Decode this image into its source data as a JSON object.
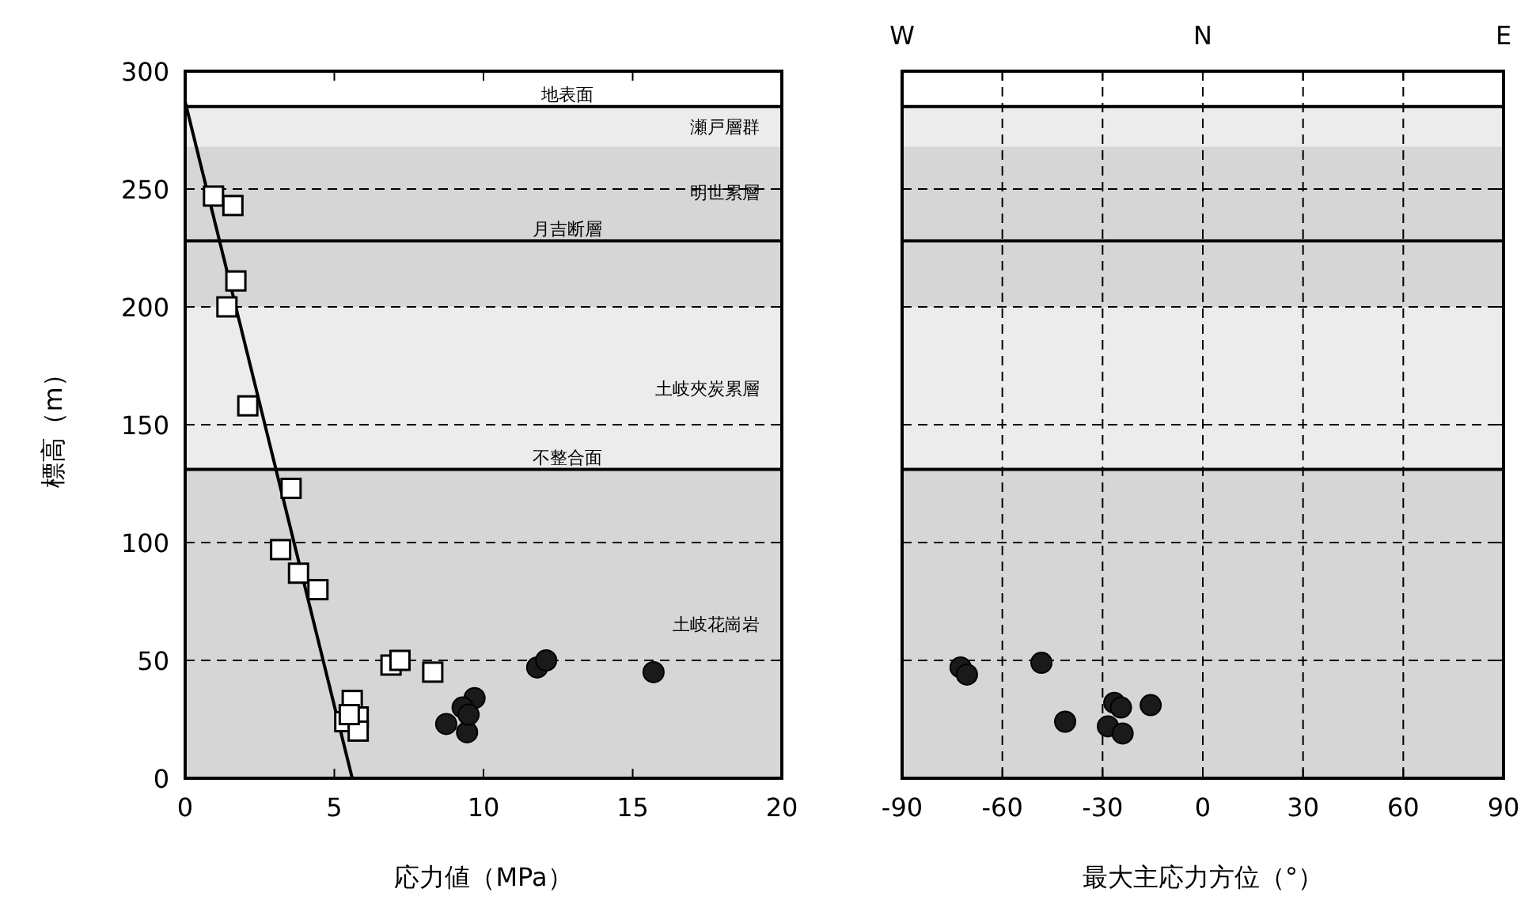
{
  "chart_data": [
    {
      "type": "scatter",
      "xlabel": "応力値（MPa）",
      "ylabel": "標高（m）",
      "xlim": [
        0,
        20
      ],
      "xticks": [
        0,
        5,
        10,
        15,
        20
      ],
      "ylim": [
        0,
        300
      ],
      "yticks": [
        0,
        50,
        100,
        150,
        200,
        250,
        300
      ],
      "grid": "y",
      "bands": [
        {
          "axis": "y",
          "from": 268,
          "to": 285,
          "label": "瀬戸層群",
          "color": "#ececec"
        },
        {
          "axis": "y",
          "from": 229,
          "to": 268,
          "label": "明世累層",
          "color": "#d6d6d6"
        },
        {
          "axis": "y",
          "from": 200,
          "to": 229,
          "color": "#d6d6d6"
        },
        {
          "axis": "y",
          "from": 131,
          "to": 200,
          "label": "土岐夾炭累層",
          "color": "#ececec"
        },
        {
          "axis": "y",
          "from": 0,
          "to": 131,
          "label": "土岐花崗岩",
          "color": "#d6d6d6"
        }
      ],
      "ref_lines": [
        {
          "axis": "y",
          "value": 285,
          "label": "地表面",
          "color": "#000000"
        },
        {
          "axis": "y",
          "value": 228,
          "label": "月吉断層",
          "color": "#000000"
        },
        {
          "axis": "y",
          "value": 131,
          "label": "不整合面",
          "color": "#000000"
        }
      ],
      "series": [
        {
          "type": "line",
          "color": "#000000",
          "x": [
            0,
            5.6
          ],
          "values": [
            287,
            0
          ]
        },
        {
          "color": "#ffffff",
          "marker": "square",
          "x": [
            0.95,
            1.6,
            1.7,
            1.4,
            2.1,
            3.55,
            3.2,
            3.8,
            4.45,
            6.9,
            7.2,
            8.3,
            5.6,
            5.35,
            5.8,
            5.8,
            5.5
          ],
          "values": [
            247,
            243,
            211,
            200,
            158,
            123,
            97,
            87,
            80,
            48,
            50,
            45,
            33,
            24,
            26,
            20,
            27
          ]
        },
        {
          "color": "#1a1a1a",
          "marker": "circle",
          "x": [
            11.8,
            12.1,
            15.7,
            8.75,
            9.7,
            9.3,
            9.45,
            9.5
          ],
          "values": [
            47,
            50,
            45,
            23,
            34,
            30,
            19.5,
            27
          ]
        }
      ]
    },
    {
      "type": "scatter",
      "xlabel": "最大主応力方位（°）",
      "xlim": [
        -90,
        90
      ],
      "xticks": [
        -90,
        -60,
        -30,
        0,
        30,
        60,
        90
      ],
      "annotations": [
        "W",
        "N",
        "E"
      ],
      "ylim": [
        0,
        300
      ],
      "yticks": [
        {
          "value": 0,
          "label": null
        },
        {
          "value": 50,
          "label": null
        },
        {
          "value": 100,
          "label": null
        },
        {
          "value": 150,
          "label": null
        },
        {
          "value": 200,
          "label": null
        },
        {
          "value": 250,
          "label": null
        },
        {
          "value": 300,
          "label": null
        }
      ],
      "tick_labels": "x",
      "grid": true,
      "bands": [
        {
          "axis": "y",
          "from": 268,
          "to": 285,
          "color": "#ececec"
        },
        {
          "axis": "y",
          "from": 229,
          "to": 268,
          "color": "#d6d6d6"
        },
        {
          "axis": "y",
          "from": 200,
          "to": 229,
          "color": "#d6d6d6"
        },
        {
          "axis": "y",
          "from": 131,
          "to": 200,
          "color": "#ececec"
        },
        {
          "axis": "y",
          "from": 0,
          "to": 131,
          "color": "#d6d6d6"
        }
      ],
      "ref_lines": [
        {
          "axis": "y",
          "value": 285,
          "color": "#000000"
        },
        {
          "axis": "y",
          "value": 228,
          "color": "#000000"
        },
        {
          "axis": "y",
          "value": 131,
          "color": "#000000"
        }
      ],
      "series": [
        {
          "color": "#1a1a1a",
          "marker": "circle",
          "x": [
            -72.5,
            -70.6,
            -48.3,
            -41.2,
            -26.5,
            -24.5,
            -15.6,
            -28.4,
            -24
          ],
          "values": [
            47,
            44,
            49,
            24,
            32,
            30,
            31,
            22,
            19
          ]
        }
      ]
    }
  ]
}
